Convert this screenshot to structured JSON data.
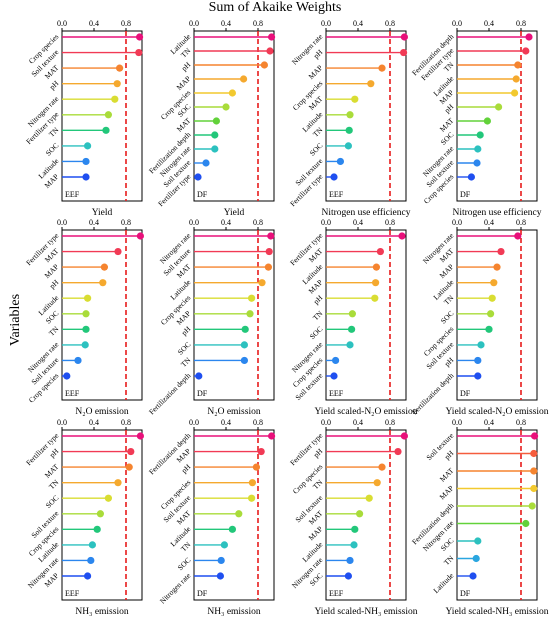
{
  "figure": {
    "title": "Sum of Akaike Weights",
    "ylabel": "Variables",
    "colors": [
      "#e8107a",
      "#f13a55",
      "#f55d3d",
      "#f5842f",
      "#f5a92e",
      "#f2c92f",
      "#d9dd32",
      "#a9dc3a",
      "#62d23a",
      "#22c77a",
      "#2cc1bf",
      "#2aa6e0",
      "#2b86ee",
      "#1f4ff0"
    ],
    "threshold_color": "#e81c1c"
  },
  "chart_data": [
    {
      "type": "lollipop",
      "panel_title": "Yield",
      "tag": "EEF",
      "xlim": [
        0,
        1
      ],
      "xticks": [
        "0.0",
        "0.4",
        "0.8"
      ],
      "threshold": 0.8,
      "categories": [
        "Crop species",
        "Soil texture",
        "MAT",
        "pH",
        "Nitrogen rate",
        "Fertilizer type",
        "TN",
        "SOC",
        "Latitude",
        "MAP"
      ],
      "values": [
        0.97,
        0.96,
        0.72,
        0.69,
        0.66,
        0.58,
        0.55,
        0.32,
        0.3,
        0.3
      ]
    },
    {
      "type": "lollipop",
      "panel_title": "Yield",
      "tag": "DF",
      "xlim": [
        0,
        1
      ],
      "xticks": [
        "0.0",
        "0.4",
        "0.8"
      ],
      "threshold": 0.8,
      "categories": [
        "Latitude",
        "TN",
        "pH",
        "MAP",
        "Crop species",
        "SOC",
        "MAT",
        "Fertilization depth",
        "Nitrogen rate",
        "Soil texture",
        "Fertilizer type"
      ],
      "values": [
        0.97,
        0.95,
        0.88,
        0.62,
        0.48,
        0.4,
        0.28,
        0.26,
        0.26,
        0.15,
        0.05
      ]
    },
    {
      "type": "lollipop",
      "panel_title": "Nitrogen use efficiency",
      "tag": "EEF",
      "xlim": [
        0,
        1
      ],
      "xticks": [
        "0.0",
        "0.4",
        "0.8"
      ],
      "threshold": 0.8,
      "categories": [
        "Nitrogen rate",
        "pH",
        "MAP",
        "Crop species",
        "MAT",
        "Latitude",
        "TN",
        "SOC",
        "Soil texture",
        "Fertilizer type"
      ],
      "values": [
        0.98,
        0.97,
        0.7,
        0.56,
        0.36,
        0.3,
        0.29,
        0.28,
        0.18,
        0.1
      ]
    },
    {
      "type": "lollipop",
      "panel_title": "Nitrogen use efficiency",
      "tag": "DF",
      "xlim": [
        0,
        1
      ],
      "xticks": [
        "0.0",
        "0.4",
        "0.8"
      ],
      "threshold": 0.8,
      "categories": [
        "Fertilization depth",
        "Fertilizer type",
        "TN",
        "Latitude",
        "MAP",
        "pH",
        "MAT",
        "SOC",
        "Nitrogen rate",
        "Soil texture",
        "Crop species"
      ],
      "values": [
        0.9,
        0.86,
        0.76,
        0.74,
        0.72,
        0.52,
        0.38,
        0.29,
        0.26,
        0.25,
        0.18
      ]
    },
    {
      "type": "lollipop",
      "panel_title": "N₂O emission",
      "tag": "EEF",
      "xlim": [
        0,
        1
      ],
      "xticks": [
        "0.0",
        "0.4",
        "0.8"
      ],
      "threshold": 0.8,
      "categories": [
        "Fertilizer type",
        "MAT",
        "MAP",
        "pH",
        "Latitude",
        "SOC",
        "TN",
        "Nitrogen rate",
        "Soil texture",
        "Crop species"
      ],
      "values": [
        0.98,
        0.7,
        0.53,
        0.51,
        0.32,
        0.3,
        0.3,
        0.29,
        0.2,
        0.06
      ]
    },
    {
      "type": "lollipop",
      "panel_title": "N₂O emission",
      "tag": "DF",
      "xlim": [
        0,
        1
      ],
      "xticks": [
        "0.0",
        "0.4",
        "0.8"
      ],
      "threshold": 0.8,
      "categories": [
        "Nitrogen rate",
        "Soil texture",
        "MAT",
        "Latitude",
        "Crop species",
        "MAP",
        "pH",
        "SOC",
        "TN",
        "Fertilization depth"
      ],
      "values": [
        0.96,
        0.94,
        0.93,
        0.85,
        0.72,
        0.7,
        0.64,
        0.63,
        0.63,
        0.06
      ]
    },
    {
      "type": "lollipop",
      "panel_title": "Yield scaled-N₂O emission",
      "tag": "EEF",
      "xlim": [
        0,
        1
      ],
      "xticks": [
        "0.0",
        "0.4",
        "0.8"
      ],
      "threshold": 0.8,
      "categories": [
        "Fertilizer type",
        "MAT",
        "Latitude",
        "MAP",
        "pH",
        "TN",
        "SOC",
        "Nitrogen rate",
        "Crop species",
        "Soil texture"
      ],
      "values": [
        0.95,
        0.68,
        0.63,
        0.62,
        0.61,
        0.33,
        0.32,
        0.3,
        0.12,
        0.1
      ]
    },
    {
      "type": "lollipop",
      "panel_title": "Yield scaled-N₂O emission",
      "tag": "DF",
      "xlim": [
        0,
        1
      ],
      "xticks": [
        "0.0",
        "0.4",
        "0.8"
      ],
      "threshold": 0.8,
      "categories": [
        "Nitrogen rate",
        "MAT",
        "MAP",
        "Latitude",
        "TN",
        "SOC",
        "Crop species",
        "Soil texture",
        "pH",
        "Fertilization depth"
      ],
      "values": [
        0.76,
        0.55,
        0.5,
        0.46,
        0.44,
        0.42,
        0.4,
        0.3,
        0.26,
        0.26
      ]
    },
    {
      "type": "lollipop",
      "panel_title": "NH₃ emission",
      "tag": "EEF",
      "xlim": [
        0,
        1
      ],
      "xticks": [
        "0.0",
        "0.4",
        "0.8"
      ],
      "threshold": 0.8,
      "categories": [
        "Fertilizer type",
        "pH",
        "MAT",
        "TN",
        "SOC",
        "Soil texture",
        "Crop species",
        "Latitude",
        "Nitrogen rate",
        "MAP"
      ],
      "values": [
        0.98,
        0.86,
        0.84,
        0.7,
        0.58,
        0.48,
        0.44,
        0.38,
        0.36,
        0.32
      ]
    },
    {
      "type": "lollipop",
      "panel_title": "NH₃ emission",
      "tag": "DF",
      "xlim": [
        0,
        1
      ],
      "xticks": [
        "0.0",
        "0.4",
        "0.8"
      ],
      "threshold": 0.8,
      "categories": [
        "Fertilization depth",
        "MAP",
        "pH",
        "Crop species",
        "Soil texture",
        "MAT",
        "Latitude",
        "TN",
        "SOC",
        "Nitrogen rate"
      ],
      "values": [
        0.97,
        0.84,
        0.78,
        0.73,
        0.72,
        0.56,
        0.48,
        0.38,
        0.34,
        0.33
      ]
    },
    {
      "type": "lollipop",
      "panel_title": "Yield scaled-NH₃ emission",
      "tag": "EEF",
      "xlim": [
        0,
        1
      ],
      "xticks": [
        "0.0",
        "0.4",
        "0.8"
      ],
      "threshold": 0.8,
      "categories": [
        "Fertilizer type",
        "pH",
        "Crop species",
        "TN",
        "Soil texture",
        "MAT",
        "MAP",
        "Latitude",
        "Nitrogen rate",
        "SOC"
      ],
      "values": [
        0.98,
        0.9,
        0.7,
        0.64,
        0.54,
        0.42,
        0.36,
        0.35,
        0.3,
        0.28
      ]
    },
    {
      "type": "lollipop",
      "panel_title": "Yield scaled-NH₃ emission",
      "tag": "DF",
      "xlim": [
        0,
        1
      ],
      "xticks": [
        "0.0",
        "0.4",
        "0.8"
      ],
      "threshold": 0.8,
      "categories": [
        "Soil texture",
        "pH",
        "MAT",
        "MAP",
        "Fertilization depth",
        "Nitrogen rate",
        "SOC",
        "TN",
        "Latitude"
      ],
      "values": [
        0.97,
        0.96,
        0.96,
        0.96,
        0.94,
        0.86,
        0.26,
        0.24,
        0.2
      ]
    }
  ]
}
